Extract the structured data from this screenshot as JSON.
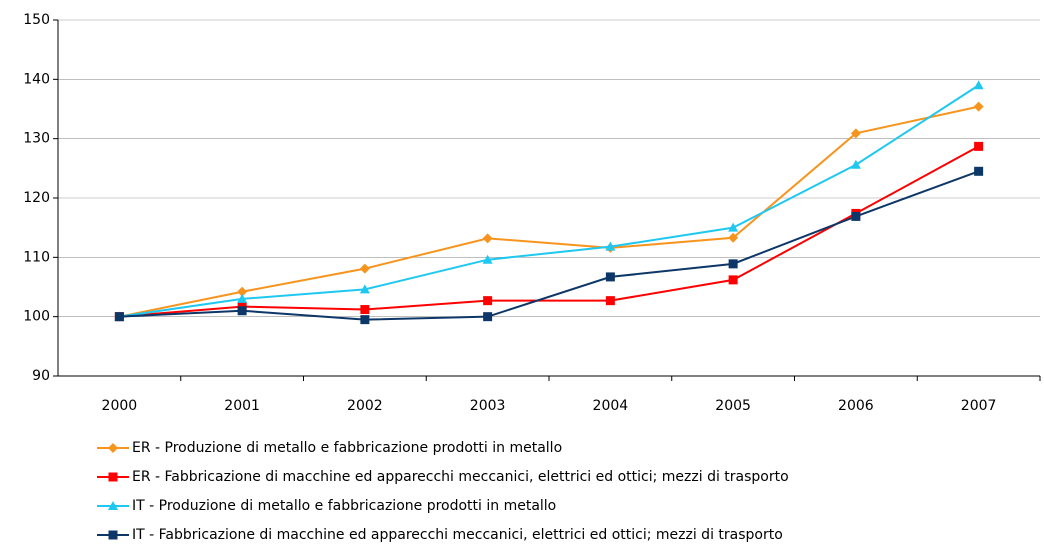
{
  "chart_data": {
    "type": "line",
    "categories": [
      "2000",
      "2001",
      "2002",
      "2003",
      "2004",
      "2005",
      "2006",
      "2007"
    ],
    "series": [
      {
        "name": "ER - Produzione di metallo e fabbricazione prodotti in metallo",
        "color": "#f7941d",
        "marker": "diamond",
        "values": [
          100,
          104.2,
          108.1,
          113.2,
          111.6,
          113.3,
          130.9,
          135.4
        ]
      },
      {
        "name": "ER - Fabbricazione di macchine ed apparecchi meccanici, elettrici ed ottici; mezzi di trasporto",
        "color": "#ff0000",
        "marker": "square",
        "values": [
          100,
          101.7,
          101.2,
          102.7,
          102.7,
          106.2,
          117.4,
          128.7
        ]
      },
      {
        "name": "IT - Produzione di metallo e fabbricazione prodotti in metallo",
        "color": "#1ec8f0",
        "marker": "triangle",
        "values": [
          100,
          103.0,
          104.6,
          109.6,
          111.8,
          115.0,
          125.6,
          139.0
        ]
      },
      {
        "name": "IT - Fabbricazione di macchine ed apparecchi meccanici, elettrici ed ottici; mezzi di trasporto",
        "color": "#0d3768",
        "marker": "square",
        "values": [
          100,
          101.0,
          99.5,
          100.0,
          106.7,
          108.9,
          116.9,
          124.5
        ]
      }
    ],
    "ylim": [
      90,
      150
    ],
    "yticks": [
      90,
      100,
      110,
      120,
      130,
      140,
      150
    ],
    "grid": true,
    "legend": "bottom"
  }
}
